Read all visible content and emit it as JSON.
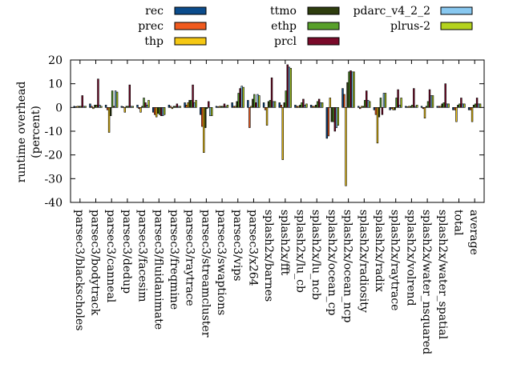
{
  "chart_data": {
    "type": "bar",
    "title": "",
    "xlabel": "",
    "ylabel": "runtime overhead\n(percent)",
    "ylim": [
      -40,
      20
    ],
    "yticks": [
      -40,
      -30,
      -20,
      -10,
      0,
      10,
      20
    ],
    "grid": false,
    "legend_position": "top",
    "categories": [
      "parsec3/blackscholes",
      "parsec3/bodytrack",
      "parsec3/canneal",
      "parsec3/dedup",
      "parsec3/facesim",
      "parsec3/fluidanimate",
      "parsec3/freqmine",
      "parsec3/raytrace",
      "parsec3/streamcluster",
      "parsec3/swaptions",
      "parsec3/vips",
      "parsec3/x264",
      "splash2x/barnes",
      "splash2x/fft",
      "splash2x/lu_cb",
      "splash2x/lu_ncb",
      "splash2x/ocean_cp",
      "splash2x/ocean_ncp",
      "splash2x/radiosity",
      "splash2x/radix",
      "splash2x/raytrace",
      "splash2x/volrend",
      "splash2x/water_nsquared",
      "splash2x/water_spatial",
      "total",
      "average"
    ],
    "series": [
      {
        "name": "rec",
        "color": "#0b4c8c",
        "values": [
          0.5,
          1.5,
          1.0,
          0.5,
          1.0,
          -2.0,
          1.0,
          2.0,
          -3.0,
          0.5,
          2.0,
          3.0,
          2.0,
          2.0,
          1.0,
          1.0,
          -13.0,
          8.0,
          0.5,
          -1.0,
          -1.0,
          0.5,
          0.5,
          0.5,
          -1.0,
          -1.0
        ]
      },
      {
        "name": "prec",
        "color": "#f05a1e",
        "values": [
          0.3,
          0.5,
          -1.0,
          0.3,
          -0.5,
          -3.0,
          0.5,
          1.0,
          -8.0,
          0.3,
          0.5,
          -8.5,
          -1.0,
          1.0,
          0.5,
          0.5,
          -12.0,
          5.5,
          -0.5,
          -3.0,
          -0.5,
          0.3,
          -0.5,
          0.5,
          -1.0,
          -1.0
        ]
      },
      {
        "name": "thp",
        "color": "#f5c814",
        "values": [
          0.5,
          -0.5,
          -10.5,
          -2.0,
          -2.0,
          -4.0,
          -0.5,
          2.0,
          -19.0,
          0.5,
          0.5,
          0.5,
          -7.5,
          -22.0,
          0.5,
          0.5,
          4.0,
          -33.0,
          0.5,
          -15.0,
          -1.0,
          0.5,
          -4.5,
          0.5,
          -6.0,
          -6.0
        ]
      },
      {
        "name": "ttmo",
        "color": "#2e3d0e",
        "values": [
          0.5,
          1.0,
          -3.5,
          0.5,
          0.5,
          -2.5,
          0.5,
          3.0,
          -8.5,
          0.5,
          2.5,
          3.5,
          2.5,
          2.0,
          1.0,
          1.0,
          -6.0,
          10.5,
          0.5,
          -4.0,
          -1.0,
          0.5,
          0.5,
          1.5,
          1.0,
          1.0
        ]
      },
      {
        "name": "ethp",
        "color": "#58a02a",
        "values": [
          0.5,
          1.0,
          7.0,
          0.5,
          4.0,
          -3.0,
          0.5,
          3.0,
          -0.5,
          0.5,
          6.0,
          5.5,
          3.0,
          7.0,
          2.0,
          2.5,
          -6.0,
          15.0,
          3.0,
          4.0,
          4.0,
          1.0,
          2.5,
          2.0,
          1.5,
          1.5
        ]
      },
      {
        "name": "prcl",
        "color": "#7a0a2a",
        "values": [
          5.0,
          12.0,
          0.5,
          9.5,
          2.0,
          -3.5,
          1.5,
          9.5,
          2.5,
          1.5,
          8.0,
          2.0,
          12.5,
          18.0,
          3.5,
          3.5,
          -10.0,
          15.5,
          7.0,
          -3.0,
          7.5,
          8.0,
          7.5,
          10.0,
          4.0,
          4.0
        ]
      },
      {
        "name": "pdarc_v4_2_2",
        "color": "#88c8f0",
        "values": [
          0.5,
          1.0,
          7.0,
          0.5,
          1.0,
          -3.5,
          0.5,
          2.0,
          -3.5,
          0.5,
          9.0,
          5.5,
          2.5,
          17.0,
          1.0,
          2.0,
          -8.5,
          15.0,
          3.0,
          6.0,
          1.0,
          0.5,
          5.0,
          1.5,
          1.5,
          1.5
        ]
      },
      {
        "name": "plrus-2",
        "color": "#b4d21e",
        "values": [
          0.5,
          0.5,
          6.5,
          0.5,
          3.0,
          -3.0,
          0.5,
          3.0,
          -3.5,
          1.0,
          8.5,
          5.0,
          2.5,
          16.5,
          1.5,
          2.0,
          -7.5,
          15.0,
          2.5,
          6.0,
          4.0,
          1.0,
          5.0,
          1.5,
          1.5,
          1.5
        ]
      }
    ]
  }
}
